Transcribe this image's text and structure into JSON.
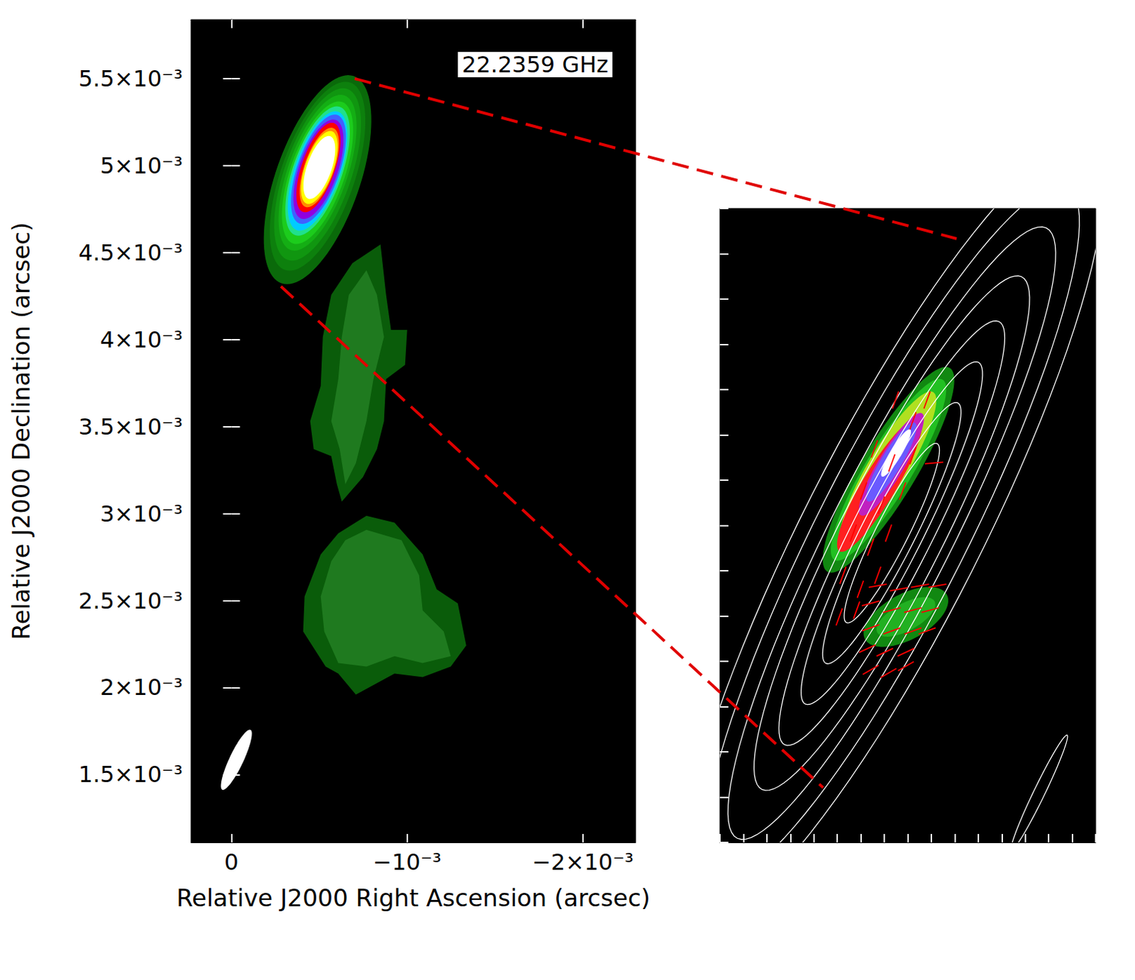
{
  "chart_data": [
    {
      "type": "contour_map",
      "annotation": "22.2359 GHz",
      "x_label": "Relative J2000 Right Ascension (arcsec)",
      "y_label": "Relative J2000 Declination (arcsec)",
      "xlim": [
        0.00023,
        -0.0023
      ],
      "ylim": [
        0.00111,
        0.00584
      ],
      "xticks": [
        0,
        {
          "value": -0.001,
          "label": "−10⁻³"
        },
        {
          "value": -0.002,
          "label": "−2×10⁻³"
        }
      ],
      "yticks": [
        {
          "value": 0.0015,
          "label": "1.5×10⁻³"
        },
        {
          "value": 0.002,
          "label": "2×10⁻³"
        },
        {
          "value": 0.0025,
          "label": "2.5×10⁻³"
        },
        {
          "value": 0.003,
          "label": "3×10⁻³"
        },
        {
          "value": 0.0035,
          "label": "3.5×10⁻³"
        },
        {
          "value": 0.004,
          "label": "4×10⁻³"
        },
        {
          "value": 0.0045,
          "label": "4.5×10⁻³"
        },
        {
          "value": 0.005,
          "label": "5×10⁻³"
        },
        {
          "value": 0.0055,
          "label": "5.5×10⁻³"
        }
      ],
      "contours": [
        {
          "color": "#0a5c0a",
          "polygon": [
            [
              -0.000848,
              0.004548
            ],
            [
              -0.00088,
              0.004258
            ],
            [
              -0.000908,
              0.004056
            ],
            [
              -0.001,
              0.004056
            ],
            [
              -0.000988,
              0.003855
            ],
            [
              -0.00088,
              0.003774
            ],
            [
              -0.000868,
              0.003532
            ],
            [
              -0.000828,
              0.003371
            ],
            [
              -0.000748,
              0.00321
            ],
            [
              -0.000628,
              0.003069
            ],
            [
              -0.0006,
              0.003169
            ],
            [
              -0.000568,
              0.003331
            ],
            [
              -0.000468,
              0.003371
            ],
            [
              -0.000448,
              0.003532
            ],
            [
              -0.000508,
              0.003734
            ],
            [
              -0.00052,
              0.004016
            ],
            [
              -0.000568,
              0.004258
            ],
            [
              -0.000688,
              0.00444
            ]
          ]
        },
        {
          "color": "#1f7a1f",
          "polygon": [
            [
              -0.000768,
              0.004399
            ],
            [
              -0.000828,
              0.004258
            ],
            [
              -0.000868,
              0.004016
            ],
            [
              -0.000808,
              0.003774
            ],
            [
              -0.000768,
              0.003532
            ],
            [
              -0.000708,
              0.00329
            ],
            [
              -0.000648,
              0.003169
            ],
            [
              -0.000616,
              0.003371
            ],
            [
              -0.000568,
              0.003532
            ],
            [
              -0.000608,
              0.003774
            ],
            [
              -0.000628,
              0.004016
            ],
            [
              -0.000668,
              0.004258
            ]
          ]
        },
        {
          "color": "#0a5c0a",
          "polygon": [
            [
              -0.000768,
              0.002988
            ],
            [
              -0.000928,
              0.002948
            ],
            [
              -0.001088,
              0.002766
            ],
            [
              -0.001168,
              0.002565
            ],
            [
              -0.001288,
              0.002484
            ],
            [
              -0.001336,
              0.002242
            ],
            [
              -0.001248,
              0.002121
            ],
            [
              -0.001088,
              0.00206
            ],
            [
              -0.000928,
              0.002081
            ],
            [
              -0.000708,
              0.00196
            ],
            [
              -0.000608,
              0.002081
            ],
            [
              -0.000536,
              0.002121
            ],
            [
              -0.000408,
              0.002323
            ],
            [
              -0.000416,
              0.002524
            ],
            [
              -0.000508,
              0.002766
            ],
            [
              -0.000608,
              0.002887
            ]
          ]
        },
        {
          "color": "#1f7a1f",
          "polygon": [
            [
              -0.000768,
              0.002907
            ],
            [
              -0.000968,
              0.002847
            ],
            [
              -0.001068,
              0.002645
            ],
            [
              -0.001088,
              0.002444
            ],
            [
              -0.001208,
              0.002323
            ],
            [
              -0.001248,
              0.002181
            ],
            [
              -0.001088,
              0.002141
            ],
            [
              -0.000928,
              0.002181
            ],
            [
              -0.000768,
              0.002121
            ],
            [
              -0.000608,
              0.002141
            ],
            [
              -0.000528,
              0.002323
            ],
            [
              -0.000508,
              0.002524
            ],
            [
              -0.000568,
              0.002726
            ],
            [
              -0.000648,
              0.002847
            ]
          ]
        },
        {
          "color": "#0a6a0a",
          "center": [
            -0.00049,
            0.00492
          ],
          "major": 0.00063,
          "minor": 0.00024,
          "pa": -19
        },
        {
          "color": "#0d800d",
          "center": [
            -0.00049,
            0.00494
          ],
          "major": 0.00057,
          "minor": 0.00021,
          "pa": -19
        },
        {
          "color": "#109610",
          "center": [
            -0.00049,
            0.00495
          ],
          "major": 0.00052,
          "minor": 0.00019,
          "pa": -19
        },
        {
          "color": "#14ae14",
          "center": [
            -0.00049,
            0.00496
          ],
          "major": 0.00047,
          "minor": 0.00017,
          "pa": -19
        },
        {
          "color": "#1ccc1c",
          "center": [
            -0.00049,
            0.00496
          ],
          "major": 0.00043,
          "minor": 0.000155,
          "pa": -19
        },
        {
          "color": "#20e08c",
          "center": [
            -0.00049,
            0.00497
          ],
          "major": 0.00039,
          "minor": 0.00014,
          "pa": -19
        },
        {
          "color": "#00ccff",
          "center": [
            -0.00049,
            0.00497
          ],
          "major": 0.00036,
          "minor": 0.00013,
          "pa": -19
        },
        {
          "color": "#4060ff",
          "center": [
            -0.000495,
            0.00498
          ],
          "major": 0.00033,
          "minor": 0.00012,
          "pa": -19
        },
        {
          "color": "#9000e0",
          "center": [
            -0.000495,
            0.00498
          ],
          "major": 0.0003,
          "minor": 0.00011,
          "pa": -19
        },
        {
          "color": "#ff0000",
          "center": [
            -0.000495,
            0.00499
          ],
          "major": 0.00027,
          "minor": 9.5e-05,
          "pa": -19
        },
        {
          "color": "#ff8c00",
          "center": [
            -0.0005,
            0.00499
          ],
          "major": 0.00024,
          "minor": 8.5e-05,
          "pa": -19
        },
        {
          "color": "#ffff00",
          "center": [
            -0.0005,
            0.00499
          ],
          "major": 0.00022,
          "minor": 8e-05,
          "pa": -19
        },
        {
          "color": "#ffffff",
          "center": [
            -0.0005,
            0.00499
          ],
          "major": 0.00019,
          "minor": 7e-05,
          "pa": -19
        }
      ],
      "beam": {
        "center": [
          -2.8e-05,
          0.001585
        ],
        "major": 0.00019,
        "minor": 4e-05,
        "pa": -25
      }
    },
    {
      "type": "polarization_map",
      "tick_labels": false,
      "xlim": [
        -0.0002,
        -0.001
      ],
      "ylim": [
        0.0042,
        0.0056
      ],
      "xticks": [
        -0.0002,
        -0.00025,
        -0.0003,
        -0.00035,
        -0.0004,
        -0.00045,
        -0.0005,
        -0.00055,
        -0.0006,
        -0.00065,
        -0.0007,
        -0.00075,
        -0.0008,
        -0.00085,
        -0.0009,
        -0.00095,
        -0.001
      ],
      "yticks": [
        0.0042,
        0.0043,
        0.0044,
        0.0045,
        0.0046,
        0.0047,
        0.0048,
        0.0049,
        0.005,
        0.0051,
        0.0052,
        0.0053,
        0.0054,
        0.0055,
        0.0056
      ],
      "image": [
        {
          "color": "#118811",
          "center": [
            -0.000596,
            0.004698
          ],
          "major": 0.0001,
          "minor": 5e-05,
          "pa": -60
        },
        {
          "color": "#22b022",
          "center": [
            -0.000596,
            0.004698
          ],
          "major": 7e-05,
          "minor": 3e-05,
          "pa": -60
        },
        {
          "color": "#118811",
          "center": [
            -0.000559,
            0.005023
          ],
          "major": 0.00026,
          "minor": 6e-05,
          "pa": -30
        },
        {
          "color": "#22c022",
          "center": [
            -0.000559,
            0.005023
          ],
          "major": 0.00023,
          "minor": 5e-05,
          "pa": -30
        },
        {
          "color": "#b0e020",
          "center": [
            -0.000559,
            0.00503
          ],
          "major": 0.00019,
          "minor": 4.2e-05,
          "pa": -30
        },
        {
          "color": "#ff2020",
          "center": [
            -0.00054,
            0.00499
          ],
          "major": 0.00017,
          "minor": 3.6e-05,
          "pa": -30
        },
        {
          "color": "#c020c0",
          "center": [
            -0.000565,
            0.005035
          ],
          "major": 0.00013,
          "minor": 2.8e-05,
          "pa": -30
        },
        {
          "color": "#6a5aff",
          "center": [
            -0.000565,
            0.00504
          ],
          "major": 0.0001,
          "minor": 2.2e-05,
          "pa": -30
        },
        {
          "color": "#ffffff",
          "center": [
            -0.000575,
            0.00506
          ],
          "major": 6e-05,
          "minor": 1.2e-05,
          "pa": -30
        }
      ],
      "contours": [
        {
          "color": "#ffffff",
          "center": [
            -0.000566,
            0.004883
          ],
          "major": 0.00095,
          "minor": 0.00019,
          "pa": -26
        },
        {
          "color": "#ffffff",
          "center": [
            -0.000566,
            0.004883
          ],
          "major": 0.00085,
          "minor": 0.00016,
          "pa": -26
        },
        {
          "color": "#ffffff",
          "center": [
            -0.000566,
            0.004883
          ],
          "major": 0.00075,
          "minor": 0.00013,
          "pa": -26
        },
        {
          "color": "#ffffff",
          "center": [
            -0.000566,
            0.004883
          ],
          "major": 0.00063,
          "minor": 0.00011,
          "pa": -26
        },
        {
          "color": "#ffffff",
          "center": [
            -0.000566,
            0.004883
          ],
          "major": 0.00052,
          "minor": 8.5e-05,
          "pa": -26
        },
        {
          "color": "#ffffff",
          "center": [
            -0.000566,
            0.004883
          ],
          "major": 0.00042,
          "minor": 6.5e-05,
          "pa": -26
        },
        {
          "color": "#ffffff",
          "center": [
            -0.000566,
            0.004883
          ],
          "major": 0.00032,
          "minor": 5e-05,
          "pa": -26
        },
        {
          "color": "#ffffff",
          "center": [
            -0.000566,
            0.004883
          ],
          "major": 0.00022,
          "minor": 3.5e-05,
          "pa": -26
        },
        {
          "color": "#ffffff",
          "center": [
            -0.00088,
            0.00431
          ],
          "major": 0.00014,
          "minor": 1.2e-05,
          "pa": -25
        }
      ],
      "vector_color": "#ff0000",
      "vectors": [
        {
          "position": [
            -0.000574,
            0.005177
          ],
          "pa": -20
        },
        {
          "position": [
            -0.000611,
            0.005131
          ],
          "pa": -20
        },
        {
          "position": [
            -0.000641,
            0.005177
          ],
          "pa": -20
        },
        {
          "position": [
            -0.000529,
            0.005069
          ],
          "pa": -20
        },
        {
          "position": [
            -0.000566,
            0.005038
          ],
          "pa": -20
        },
        {
          "position": [
            -0.000611,
            0.005054
          ],
          "pa": -20
        },
        {
          "position": [
            -0.000506,
            0.004976
          ],
          "pa": -20
        },
        {
          "position": [
            -0.000544,
            0.004945
          ],
          "pa": -20
        },
        {
          "position": [
            -0.000589,
            0.004976
          ],
          "pa": -20
        },
        {
          "position": [
            -0.000484,
            0.004883
          ],
          "pa": -20
        },
        {
          "position": [
            -0.000521,
            0.004852
          ],
          "pa": -20
        },
        {
          "position": [
            -0.000559,
            0.004883
          ],
          "pa": -20
        },
        {
          "position": [
            -0.000462,
            0.00479
          ],
          "pa": -20
        },
        {
          "position": [
            -0.000499,
            0.004759
          ],
          "pa": -20
        },
        {
          "position": [
            -0.000536,
            0.00479
          ],
          "pa": -20
        },
        {
          "position": [
            -0.000454,
            0.004698
          ],
          "pa": -20
        },
        {
          "position": [
            -0.000491,
            0.004713
          ],
          "pa": -20
        },
        {
          "position": [
            -0.000656,
            0.005038
          ],
          "pa": -85
        },
        {
          "position": [
            -0.000536,
            0.004767
          ],
          "pa": -80
        },
        {
          "position": [
            -0.000581,
            0.004759
          ],
          "pa": -80
        },
        {
          "position": [
            -0.000626,
            0.004767
          ],
          "pa": -80
        },
        {
          "position": [
            -0.000663,
            0.004767
          ],
          "pa": -80
        },
        {
          "position": [
            -0.000521,
            0.004728
          ],
          "pa": -75
        },
        {
          "position": [
            -0.000566,
            0.004713
          ],
          "pa": -75
        },
        {
          "position": [
            -0.000611,
            0.004713
          ],
          "pa": -75
        },
        {
          "position": [
            -0.000648,
            0.004713
          ],
          "pa": -75
        },
        {
          "position": [
            -0.000521,
            0.004674
          ],
          "pa": -70
        },
        {
          "position": [
            -0.000566,
            0.004667
          ],
          "pa": -70
        },
        {
          "position": [
            -0.000611,
            0.004667
          ],
          "pa": -70
        },
        {
          "position": [
            -0.000641,
            0.004667
          ],
          "pa": -70
        },
        {
          "position": [
            -0.000514,
            0.004628
          ],
          "pa": -65
        },
        {
          "position": [
            -0.000551,
            0.00462
          ],
          "pa": -65
        },
        {
          "position": [
            -0.000596,
            0.00462
          ],
          "pa": -65
        },
        {
          "position": [
            -0.000521,
            0.004581
          ],
          "pa": -60
        },
        {
          "position": [
            -0.000559,
            0.004574
          ],
          "pa": -60
        },
        {
          "position": [
            -0.000596,
            0.004589
          ],
          "pa": -60
        }
      ]
    }
  ]
}
